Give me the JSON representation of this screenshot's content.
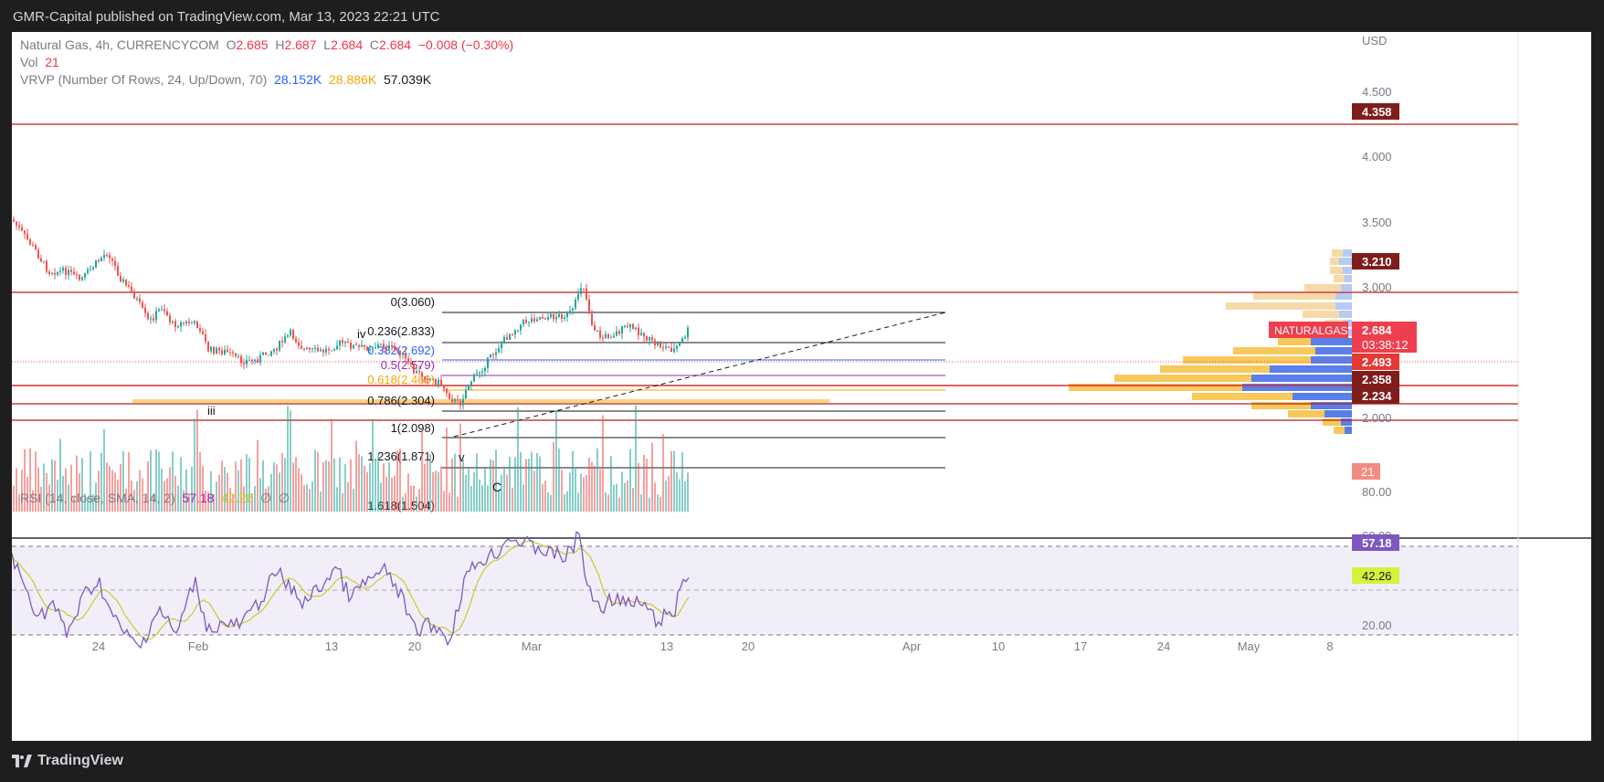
{
  "header": {
    "published": "GMR-Capital published on TradingView.com, Mar 13, 2023 22:21 UTC"
  },
  "legend": {
    "symbol": "Natural Gas, 4h, CURRENCYCOM",
    "o_label": "O",
    "o_val": "2.685",
    "h_label": "H",
    "h_val": "2.687",
    "l_label": "L",
    "l_val": "2.684",
    "c_label": "C",
    "c_val": "2.684",
    "change": "−0.008 (−0.30%)",
    "vol_label": "Vol",
    "vol_val": "21",
    "vrvp_label": "VRVP (Number Of Rows, 24, Up/Down, 70)",
    "vrvp_up": "28.152K",
    "vrvp_down": "28.886K",
    "vrvp_total": "57.039K",
    "rsi_label": "RSI (14, close, SMA, 14, 2)",
    "rsi_val": "57.18",
    "rsi_sma": "42.26",
    "rsi_empty1": "∅",
    "rsi_empty2": "∅"
  },
  "price_axis": {
    "currency": "USD",
    "ticks": [
      "4.500",
      "4.000",
      "3.500",
      "3.000",
      "2.000"
    ],
    "tags": {
      "t4358": "4.358",
      "t3210": "3.210",
      "t2684": "2.684",
      "countdown": "03:38:12",
      "symbol_tag": "NATURALGAS",
      "t2493": "2.493",
      "t2358": "2.358",
      "t2234": "2.234",
      "vol": "21"
    }
  },
  "rsi_axis": {
    "ticks": [
      "80.00",
      "60.00",
      "20.00"
    ],
    "rsi_tag": "57.18",
    "sma_tag": "42.26"
  },
  "time_axis": [
    "24",
    "Feb",
    "13",
    "20",
    "Mar",
    "13",
    "20",
    "Apr",
    "10",
    "17",
    "24",
    "May",
    "8"
  ],
  "fib": {
    "l0": "0(3.060)",
    "l236": "0.236(2.833)",
    "l382": "0.382(2.692)",
    "l5": "0.5(2.579)",
    "l618": "0.618(2.466)",
    "l786": "0.786(2.304)",
    "l1": "1(2.098)",
    "l1236": "1.236(1.871)",
    "l1618": "1.618(1.504)"
  },
  "waves": {
    "iv": "iv",
    "iii": "iii",
    "v": "v",
    "c": "C"
  },
  "footer": {
    "brand": "TradingView"
  },
  "colors": {
    "up": "#26a69a",
    "down": "#ef5350",
    "rsi": "#7e57c2",
    "rsi_sma": "#c6cd27",
    "level": "#b71c1c",
    "fib": "#131722",
    "zone": "#f7c95c"
  }
}
